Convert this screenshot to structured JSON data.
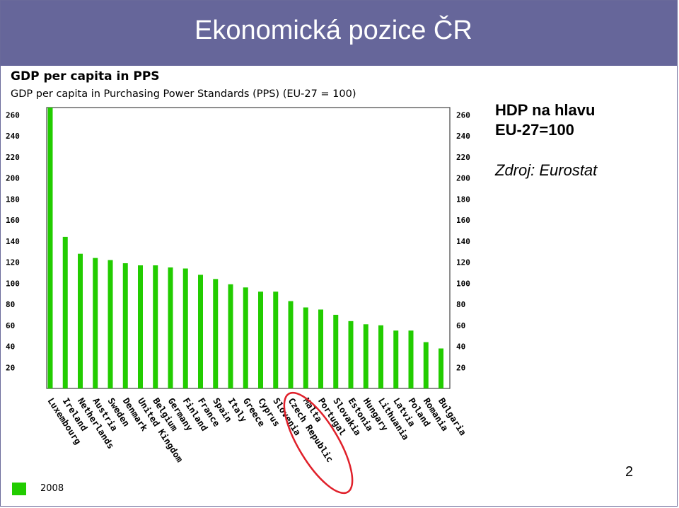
{
  "slide": {
    "title": "Ekonomická pozice ČR",
    "note_line1": "HDP na hlavu",
    "note_line2": "EU-27=100",
    "source": "Zdroj: Eurostat",
    "page_number": "2"
  },
  "colors": {
    "header": "#66669a",
    "bar": "#22cc00",
    "highlight_ellipse": "#e0202a"
  },
  "chart_data": {
    "type": "bar",
    "title": "GDP per capita in PPS",
    "subtitle": "GDP per capita in Purchasing Power Standards (PPS) (EU-27 = 100)",
    "categories": [
      "Luxembourg",
      "Ireland",
      "Netherlands",
      "Austria",
      "Sweden",
      "Denmark",
      "United Kingdom",
      "Belgium",
      "Germany",
      "Finland",
      "France",
      "Spain",
      "Italy",
      "Greece",
      "Cyprus",
      "Slovenia",
      "Czech Republic",
      "Malta",
      "Portugal",
      "Slovakia",
      "Estonia",
      "Hungary",
      "Lithuania",
      "Latvia",
      "Poland",
      "Romania",
      "Bulgaria"
    ],
    "series": [
      {
        "name": "2008",
        "values": [
          267,
          144,
          128,
          124,
          122,
          119,
          117,
          117,
          115,
          114,
          108,
          104,
          99,
          96,
          92,
          92,
          83,
          77,
          75,
          70,
          64,
          61,
          60,
          55,
          55,
          44,
          38
        ]
      }
    ],
    "yticks": [
      20,
      40,
      60,
      80,
      100,
      120,
      140,
      160,
      180,
      200,
      220,
      240,
      260
    ],
    "ylim": [
      0,
      267
    ],
    "highlighted_category": "Czech Republic",
    "legend_placement": "bottom-left",
    "grid": false
  }
}
